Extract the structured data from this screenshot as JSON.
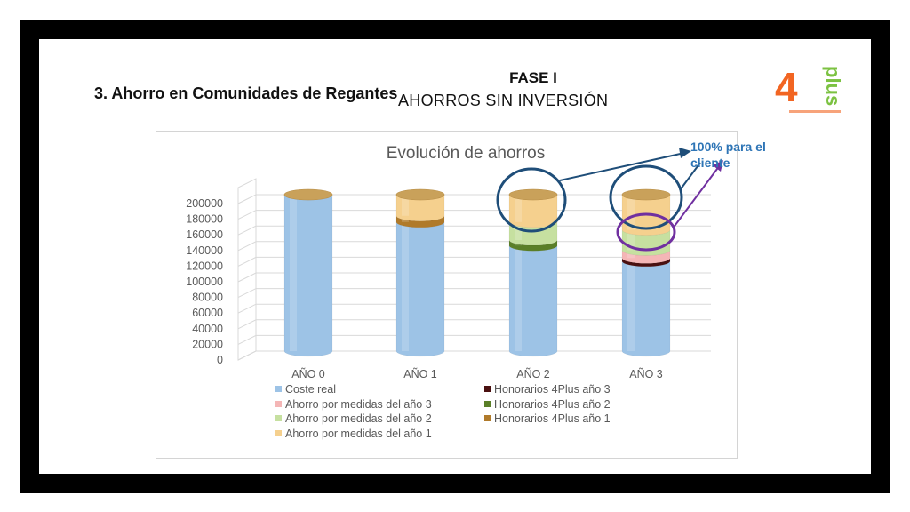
{
  "slide": {
    "section_title": "3. Ahorro en Comunidades de Regantes",
    "phase_title": "FASE I",
    "phase_subtitle": "AHORROS SIN INVERSIÓN",
    "callout_text": "100% para el cliente",
    "logo_text": "4plus",
    "colors": {
      "frame": "#000000",
      "accent_orange": "#f26522",
      "accent_green": "#7cc242",
      "callout_blue": "#2e75b6",
      "arrow_purple": "#7030a0"
    }
  },
  "chart_data": {
    "type": "bar",
    "stacked": true,
    "three_d": true,
    "title": "Evolución de ahorros",
    "categories": [
      "AÑO 0",
      "AÑO 1",
      "AÑO 2",
      "AÑO 3"
    ],
    "ylim": [
      0,
      200000
    ],
    "y_ticks": [
      "0",
      "20000",
      "40000",
      "60000",
      "80000",
      "100000",
      "120000",
      "140000",
      "160000",
      "180000",
      "200000"
    ],
    "grid": true,
    "legend_position": "bottom",
    "series": [
      {
        "name": "Coste real",
        "color": "#9dc3e6",
        "values": [
          200000,
          165000,
          135000,
          115000
        ]
      },
      {
        "name": "Honorarios 4Plus año 3",
        "color": "#4a1010",
        "values": [
          0,
          0,
          0,
          4000
        ]
      },
      {
        "name": "Ahorro por medidas del año 3",
        "color": "#f4b6b6",
        "values": [
          0,
          0,
          0,
          10000
        ]
      },
      {
        "name": "Honorarios 4Plus año 2",
        "color": "#5a7f28",
        "values": [
          0,
          0,
          7000,
          0
        ]
      },
      {
        "name": "Ahorro por medidas del año 2",
        "color": "#c6e0a0",
        "values": [
          0,
          0,
          23000,
          26000
        ]
      },
      {
        "name": "Honorarios 4Plus año 1",
        "color": "#b07a2a",
        "values": [
          0,
          8000,
          0,
          0
        ]
      },
      {
        "name": "Ahorro por medidas del año 1",
        "color": "#f5d08e",
        "values": [
          0,
          27000,
          35000,
          45000
        ]
      }
    ]
  }
}
